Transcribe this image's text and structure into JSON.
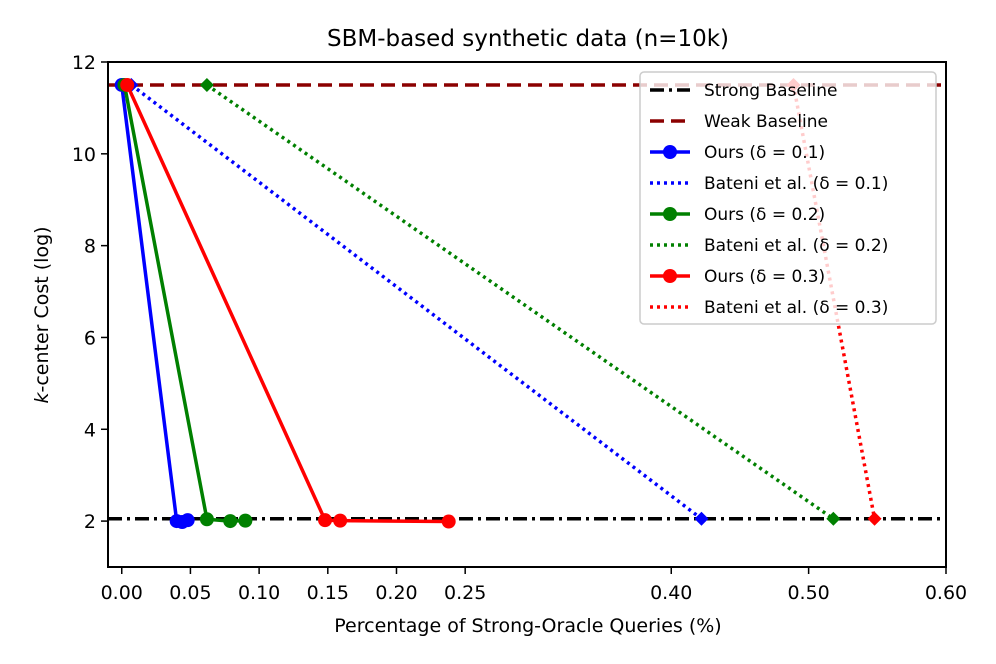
{
  "chart_data": {
    "type": "line",
    "title": "SBM-based synthetic data (n=10k)",
    "xlabel": "Percentage of Strong-Oracle Queries (%)",
    "ylabel_prefix": "k",
    "ylabel_rest": "-center Cost (log)",
    "xlim": [
      -0.01,
      0.6
    ],
    "ylim": [
      1.0,
      12.0
    ],
    "x_ticks": [
      0.0,
      0.05,
      0.1,
      0.15,
      0.2,
      0.25,
      0.4,
      0.5,
      0.6
    ],
    "x_tick_labels": [
      "0.00",
      "0.05",
      "0.10",
      "0.15",
      "0.20",
      "0.25",
      "0.40",
      "0.50",
      "0.60"
    ],
    "y_ticks": [
      2,
      4,
      6,
      8,
      10,
      12
    ],
    "y_tick_labels": [
      "2",
      "4",
      "6",
      "8",
      "10",
      "12"
    ],
    "legend_position": "top-right",
    "series": [
      {
        "name": "Strong Baseline",
        "legend_label": "Strong Baseline",
        "kind": "hline",
        "y": 2.05,
        "color": "#000000",
        "style": "dashdot",
        "marker": "none"
      },
      {
        "name": "Weak Baseline",
        "legend_label": "Weak Baseline",
        "kind": "hline",
        "y": 11.5,
        "color": "#8b0000",
        "style": "dashed",
        "marker": "none"
      },
      {
        "name": "Ours (δ=0.1)",
        "legend_label": "Ours (δ = 0.1)",
        "kind": "line",
        "color": "#0000ff",
        "style": "solid",
        "marker": "circle",
        "x": [
          0.0,
          0.04,
          0.044,
          0.048
        ],
        "y": [
          11.5,
          2.0,
          1.98,
          2.02
        ]
      },
      {
        "name": "Bateni et al. (δ=0.1)",
        "legend_label": "Bateni et al. (δ = 0.1)",
        "kind": "line",
        "color": "#0000ff",
        "style": "dotted",
        "marker": "diamond",
        "x": [
          0.007,
          0.422
        ],
        "y": [
          11.5,
          2.05
        ]
      },
      {
        "name": "Ours (δ=0.2)",
        "legend_label": "Ours (δ = 0.2)",
        "kind": "line",
        "color": "#008000",
        "style": "solid",
        "marker": "circle",
        "x": [
          0.002,
          0.062,
          0.079,
          0.09
        ],
        "y": [
          11.5,
          2.04,
          2.0,
          2.01
        ]
      },
      {
        "name": "Bateni et al. (δ=0.2)",
        "legend_label": "Bateni et al. (δ = 0.2)",
        "kind": "line",
        "color": "#008000",
        "style": "dotted",
        "marker": "diamond",
        "x": [
          0.062,
          0.518
        ],
        "y": [
          11.5,
          2.05
        ]
      },
      {
        "name": "Ours (δ=0.3)",
        "legend_label": "Ours (δ = 0.3)",
        "kind": "line",
        "color": "#ff0000",
        "style": "solid",
        "marker": "circle",
        "x": [
          0.004,
          0.148,
          0.159,
          0.238
        ],
        "y": [
          11.5,
          2.02,
          2.01,
          1.99
        ]
      },
      {
        "name": "Bateni et al. (δ=0.3)",
        "legend_label": "Bateni et al. (δ = 0.3)",
        "kind": "line",
        "color": "#ff0000",
        "style": "dotted",
        "marker": "diamond",
        "x": [
          0.489,
          0.548
        ],
        "y": [
          11.5,
          2.05
        ]
      }
    ]
  }
}
